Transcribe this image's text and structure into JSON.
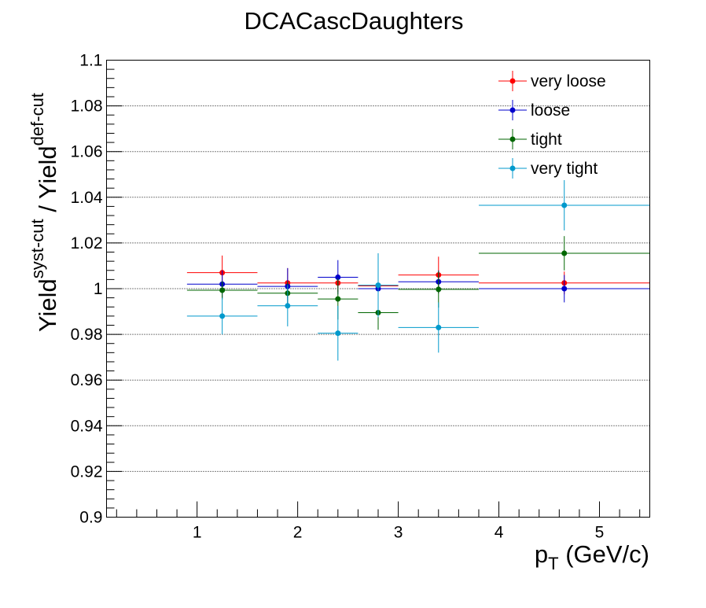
{
  "chart_data": {
    "type": "scatter",
    "title": "DCACascDaughters",
    "xlabel": {
      "main": "p",
      "sub": "T",
      "rest": " (GeV/c)"
    },
    "ylabel": {
      "a": "Yield",
      "a_sup": "syst-cut",
      "mid": " / Yield",
      "b_sup": "def-cut"
    },
    "xlim": [
      0.1,
      5.5
    ],
    "ylim": [
      0.9,
      1.1
    ],
    "x_ticks": [
      1,
      2,
      3,
      4,
      5
    ],
    "x_tick_labels": [
      "1",
      "2",
      "3",
      "4",
      "5"
    ],
    "y_ticks": [
      0.9,
      0.92,
      0.94,
      0.96,
      0.98,
      1.0,
      1.02,
      1.04,
      1.06,
      1.08,
      1.1
    ],
    "y_tick_labels": [
      "0.9",
      "0.92",
      "0.94",
      "0.96",
      "0.98",
      "1",
      "1.02",
      "1.04",
      "1.06",
      "1.08",
      "1.1"
    ],
    "grid": {
      "x": false,
      "y": true,
      "style": "dotted"
    },
    "legend_position": "top-right",
    "bins": [
      {
        "lo": 0.9,
        "hi": 1.6
      },
      {
        "lo": 1.6,
        "hi": 2.2
      },
      {
        "lo": 2.2,
        "hi": 2.6
      },
      {
        "lo": 2.6,
        "hi": 3.0
      },
      {
        "lo": 3.0,
        "hi": 3.8
      },
      {
        "lo": 3.8,
        "hi": 5.5
      }
    ],
    "series": [
      {
        "name": "very loose",
        "color": "#ff0000",
        "x": [
          1.25,
          1.9,
          2.4,
          2.8,
          3.4,
          4.65
        ],
        "y": [
          1.007,
          1.0025,
          1.0025,
          1.0012,
          1.006,
          1.0025
        ],
        "err": [
          0.0075,
          0.0065,
          0.004,
          0.004,
          0.008,
          0.005
        ]
      },
      {
        "name": "loose",
        "color": "#0000cc",
        "x": [
          1.25,
          1.9,
          2.4,
          2.8,
          3.4,
          4.65
        ],
        "y": [
          1.002,
          1.001,
          1.005,
          1.0,
          1.003,
          1.0
        ],
        "err": [
          0.006,
          0.008,
          0.0075,
          0.002,
          0.005,
          0.006
        ]
      },
      {
        "name": "tight",
        "color": "#006600",
        "x": [
          1.25,
          1.9,
          2.4,
          2.8,
          3.4,
          4.65
        ],
        "y": [
          0.9993,
          0.998,
          0.9955,
          0.9895,
          0.9997,
          1.0155
        ],
        "err": [
          0.004,
          0.005,
          0.009,
          0.0075,
          0.008,
          0.0075
        ]
      },
      {
        "name": "very tight",
        "color": "#0099cc",
        "x": [
          1.25,
          1.9,
          2.4,
          2.8,
          3.4,
          4.65
        ],
        "y": [
          0.988,
          0.9925,
          0.9805,
          1.0015,
          0.983,
          1.0365
        ],
        "err": [
          0.008,
          0.009,
          0.012,
          0.014,
          0.011,
          0.011
        ]
      }
    ]
  }
}
